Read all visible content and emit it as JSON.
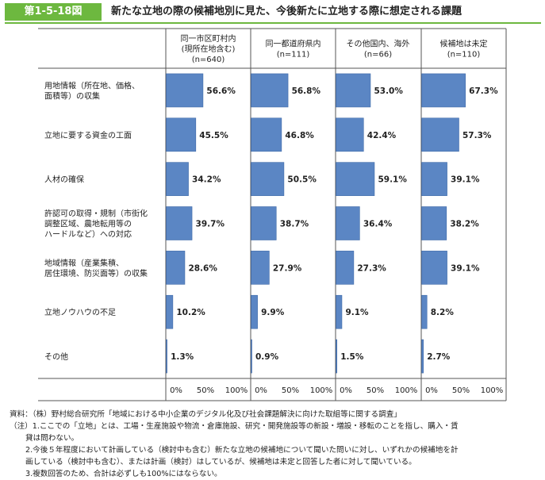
{
  "figure": {
    "number": "第1-5-18図",
    "title": "新たな立地の際の候補地別に見た、今後新たに立地する際に想定される課題"
  },
  "colors": {
    "bar": "#5b86c4",
    "bar_stroke": "#3f6aa8",
    "badge": "#6db83f",
    "grid": "#555555"
  },
  "chart_data": {
    "type": "bar",
    "orientation": "horizontal",
    "panels": [
      {
        "header_lines": [
          "同一市区町村内",
          "(現所在地含む)",
          "(n=640)"
        ],
        "values": [
          56.6,
          45.5,
          34.2,
          39.7,
          28.6,
          10.2,
          1.3
        ],
        "labels": [
          "56.6%",
          "45.5%",
          "34.2%",
          "39.7%",
          "28.6%",
          "10.2%",
          "1.3%"
        ]
      },
      {
        "header_lines": [
          "同一都道府県内",
          "(n=111)"
        ],
        "values": [
          56.8,
          46.8,
          50.5,
          38.7,
          27.9,
          9.9,
          0.9
        ],
        "labels": [
          "56.8%",
          "46.8%",
          "50.5%",
          "38.7%",
          "27.9%",
          "9.9%",
          "0.9%"
        ]
      },
      {
        "header_lines": [
          "その他国内、海外",
          "(n=66)"
        ],
        "values": [
          53.0,
          42.4,
          59.1,
          36.4,
          27.3,
          9.1,
          1.5
        ],
        "labels": [
          "53.0%",
          "42.4%",
          "59.1%",
          "36.4%",
          "27.3%",
          "9.1%",
          "1.5%"
        ]
      },
      {
        "header_lines": [
          "候補地は未定",
          "(n=110)"
        ],
        "values": [
          67.3,
          57.3,
          39.1,
          38.2,
          39.1,
          8.2,
          2.7
        ],
        "labels": [
          "67.3%",
          "57.3%",
          "39.1%",
          "38.2%",
          "39.1%",
          "8.2%",
          "2.7%"
        ]
      }
    ],
    "categories": [
      [
        "用地情報（所在地、価格、",
        "面積等）の収集"
      ],
      [
        "立地に要する資金の工面"
      ],
      [
        "人材の確保"
      ],
      [
        "許認可の取得・規制（市街化",
        "調整区域、農地転用等の",
        "ハードルなど）への対応"
      ],
      [
        "地域情報（産業集積、",
        "居住環境、防災面等）の収集"
      ],
      [
        "立地ノウハウの不足"
      ],
      [
        "その他"
      ]
    ],
    "xlim": [
      0,
      100
    ],
    "xticks": [
      "0%",
      "50%",
      "100%"
    ]
  },
  "notes": [
    "資料：（株）野村総合研究所「地域における中小企業のデジタル化及び社会課題解決に向けた取組等に関する調査」",
    "（注）1.ここでの「立地」とは、工場・生産施設や物流・倉庫施設、研究・開発施設等の新設・増設・移転のことを指し、購入・賃",
    "貸は問わない。",
    "2.今後５年程度において計画している（検討中も含む）新たな立地の候補地について聞いた問いに対し、いずれかの候補地を計",
    "画している（検討中も含む）、または計画（検討）はしているが、候補地は未定と回答した者に対して聞いている。",
    "3.複数回答のため、合計は必ずしも100%にはならない。"
  ]
}
